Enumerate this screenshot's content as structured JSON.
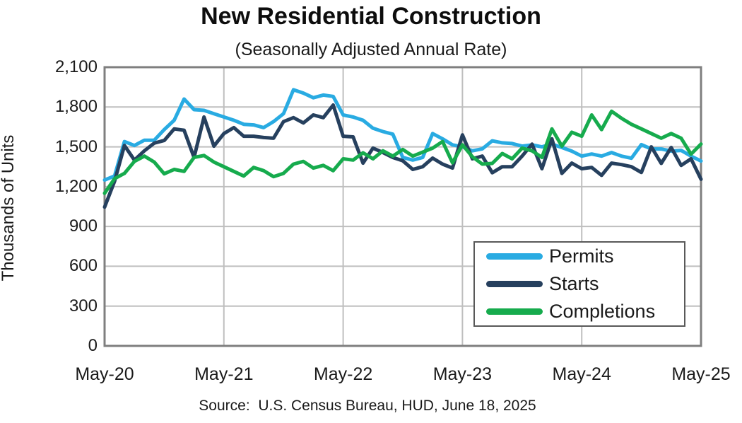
{
  "header": {
    "title": "New Residential Construction",
    "subtitle": "(Seasonally Adjusted Annual Rate)"
  },
  "source_note": "Source:  U.S. Census Bureau, HUD, June 18, 2025",
  "colors": {
    "permits": "#29ABE2",
    "starts": "#26405E",
    "completions": "#16AB4D",
    "gridline": "#BFBFBF",
    "axis_frame": "#7F7F7F",
    "legend_border": "#595959",
    "text": "#1A1A1A"
  },
  "chart_data": {
    "type": "line",
    "title": "New Residential Construction",
    "subtitle": "(Seasonally Adjusted Annual Rate)",
    "xlabel": "",
    "ylabel": "Thousands of Units",
    "ylim": [
      0,
      2100
    ],
    "ytick_interval": 300,
    "ytick_values": [
      0,
      300,
      600,
      900,
      1200,
      1500,
      1800,
      2100
    ],
    "ytick_labels": [
      "0",
      "300",
      "600",
      "900",
      "1,200",
      "1,500",
      "1,800",
      "2,100"
    ],
    "xtick_labels": [
      "May-20",
      "May-21",
      "May-22",
      "May-23",
      "May-24",
      "May-25"
    ],
    "x_frequency": "monthly",
    "x_range": "May-2020 to May-2025",
    "n_points": 61,
    "grid": true,
    "legend_position": "inside-lower-right",
    "source": "Source:  U.S. Census Bureau, HUD, June 18, 2025",
    "series": [
      {
        "name": "Permits",
        "color": "#29ABE2",
        "values": [
          1250,
          1280,
          1540,
          1510,
          1550,
          1550,
          1630,
          1700,
          1860,
          1780,
          1775,
          1750,
          1725,
          1700,
          1670,
          1665,
          1645,
          1690,
          1750,
          1930,
          1905,
          1870,
          1890,
          1880,
          1740,
          1725,
          1700,
          1640,
          1615,
          1595,
          1420,
          1400,
          1420,
          1600,
          1560,
          1515,
          1500,
          1470,
          1485,
          1545,
          1530,
          1525,
          1505,
          1515,
          1500,
          1520,
          1495,
          1468,
          1430,
          1446,
          1430,
          1457,
          1430,
          1414,
          1517,
          1484,
          1484,
          1468,
          1473,
          1430,
          1393
        ]
      },
      {
        "name": "Starts",
        "color": "#26405E",
        "values": [
          1046,
          1240,
          1510,
          1400,
          1470,
          1528,
          1548,
          1635,
          1625,
          1420,
          1725,
          1505,
          1600,
          1645,
          1580,
          1580,
          1570,
          1565,
          1690,
          1720,
          1680,
          1740,
          1720,
          1815,
          1580,
          1575,
          1377,
          1490,
          1457,
          1420,
          1395,
          1330,
          1350,
          1415,
          1370,
          1340,
          1590,
          1410,
          1430,
          1305,
          1350,
          1350,
          1430,
          1520,
          1335,
          1560,
          1300,
          1377,
          1335,
          1345,
          1285,
          1377,
          1366,
          1350,
          1307,
          1500,
          1375,
          1495,
          1360,
          1410,
          1256
        ]
      },
      {
        "name": "Completions",
        "color": "#16AB4D",
        "values": [
          1150,
          1260,
          1300,
          1390,
          1430,
          1385,
          1297,
          1330,
          1315,
          1420,
          1435,
          1385,
          1350,
          1315,
          1280,
          1345,
          1320,
          1275,
          1300,
          1370,
          1390,
          1340,
          1360,
          1320,
          1410,
          1400,
          1455,
          1410,
          1470,
          1430,
          1480,
          1430,
          1460,
          1490,
          1540,
          1380,
          1515,
          1425,
          1370,
          1375,
          1450,
          1410,
          1490,
          1470,
          1420,
          1635,
          1505,
          1610,
          1580,
          1740,
          1630,
          1768,
          1715,
          1670,
          1635,
          1600,
          1565,
          1600,
          1565,
          1445,
          1521
        ]
      }
    ]
  }
}
